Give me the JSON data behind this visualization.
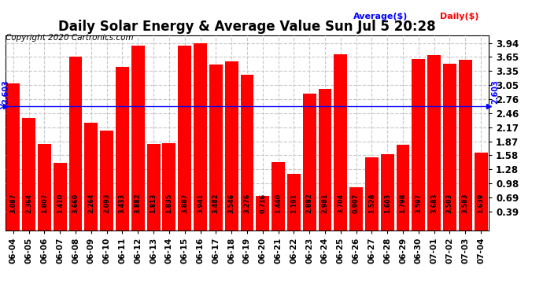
{
  "title": "Daily Solar Energy & Average Value Sun Jul 5 20:28",
  "copyright": "Copyright 2020 Cartronics.com",
  "legend_average": "Average($)",
  "legend_daily": "Daily($)",
  "average_value": 2.603,
  "categories": [
    "06-04",
    "06-05",
    "06-06",
    "06-07",
    "06-08",
    "06-09",
    "06-10",
    "06-11",
    "06-12",
    "06-13",
    "06-14",
    "06-15",
    "06-16",
    "06-17",
    "06-18",
    "06-19",
    "06-20",
    "06-21",
    "06-22",
    "06-23",
    "06-24",
    "06-25",
    "06-26",
    "06-27",
    "06-28",
    "06-29",
    "06-30",
    "07-01",
    "07-02",
    "07-03",
    "07-04"
  ],
  "values": [
    3.087,
    2.364,
    1.807,
    1.41,
    3.66,
    2.264,
    2.093,
    3.433,
    3.882,
    1.813,
    1.835,
    3.887,
    3.941,
    3.482,
    3.546,
    3.276,
    0.716,
    1.44,
    1.191,
    2.882,
    2.981,
    3.704,
    0.907,
    1.528,
    1.603,
    1.798,
    3.597,
    3.683,
    3.503,
    3.583,
    1.639
  ],
  "bar_color": "#ff0000",
  "average_line_color": "#0000ff",
  "yticks": [
    0.39,
    0.69,
    0.98,
    1.28,
    1.58,
    1.87,
    2.17,
    2.46,
    2.76,
    3.05,
    3.35,
    3.65,
    3.94
  ],
  "ylim": [
    0.0,
    4.1
  ],
  "background_color": "#ffffff",
  "grid_color": "#c8c8c8",
  "title_fontsize": 12,
  "copyright_fontsize": 7.5,
  "bar_label_fontsize": 5.8,
  "axis_label_fontsize": 8.5
}
